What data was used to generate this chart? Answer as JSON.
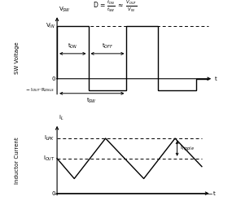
{
  "fig_width": 2.85,
  "fig_height": 2.63,
  "dpi": 100,
  "bg_color": "#ffffff",
  "line_color": "#000000",
  "top_ylabel": "SW Voltage",
  "top_xlabel": "t",
  "vsw_label": "V$_{SW}$",
  "vin_label": "V$_{IN}$",
  "zero_label": "0",
  "neg_label": "$-$ I$_{OUT}$$\\cdot$R$_{DSLS}$",
  "ton_label": "t$_{ON}$",
  "toff_label": "t$_{OFF}$",
  "tsw_label": "t$_{SW}$",
  "formula_D": "D = ",
  "formula_frac1_num": "t$_{ON}$",
  "formula_frac1_den": "t$_{SW}$",
  "formula_approx": "$\\approx$",
  "formula_frac2_num": "V$_{OUT}$",
  "formula_frac2_den": "V$_{IN}$",
  "bottom_title": "i$_L$",
  "bottom_ylabel": "Inductor Current",
  "bottom_xlabel": "t",
  "ilpk_label": "I$_{LPK}$",
  "iout_label": "I$_{OUT}$",
  "iripple_label": "I$_{ripple}$",
  "vin": 1.0,
  "neg": -0.22,
  "ton": 0.45,
  "tsw": 1.0,
  "ilpk": 0.82,
  "iout": 0.52,
  "imin": 0.22
}
